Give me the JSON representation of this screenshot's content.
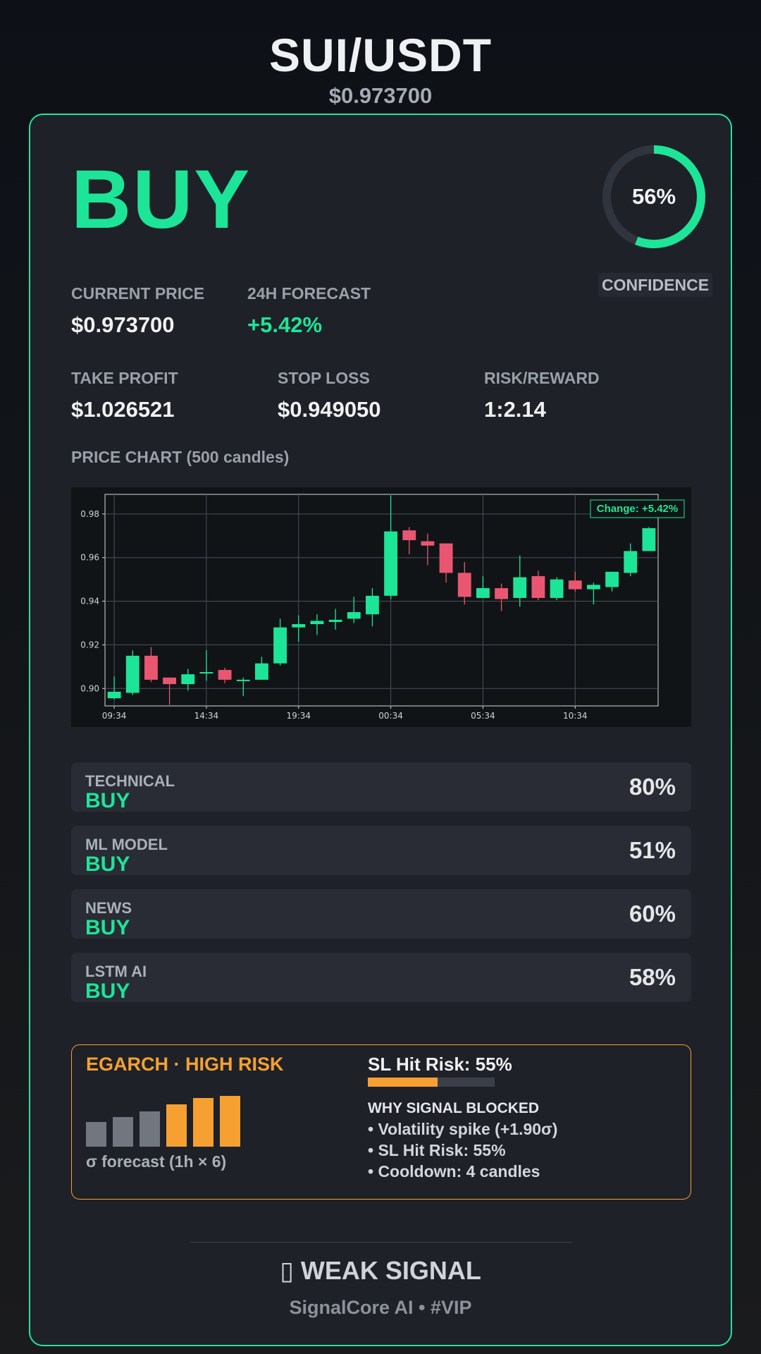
{
  "header": {
    "pair": "SUI/USDT",
    "price": "$0.973700"
  },
  "signal": {
    "action": "BUY",
    "confidence_label": "CONFIDENCE",
    "confidence_text": "56%",
    "confidence_value": 0.56
  },
  "metrics": {
    "current_price_label": "CURRENT PRICE",
    "current_price": "$0.973700",
    "forecast_label": "24H FORECAST",
    "forecast": "+5.42%",
    "take_profit_label": "TAKE PROFIT",
    "take_profit": "$1.026521",
    "stop_loss_label": "STOP LOSS",
    "stop_loss": "$0.949050",
    "rr_label": "RISK/REWARD",
    "rr": "1:2.14"
  },
  "chart_title": "PRICE CHART (500 candles)",
  "chart_data": {
    "type": "candlestick",
    "x_tick_labels": [
      "09:34",
      "14:34",
      "19:34",
      "00:34",
      "05:34",
      "10:34"
    ],
    "y_tick_labels": [
      "0.90",
      "0.92",
      "0.94",
      "0.96",
      "0.98"
    ],
    "ylim": [
      0.892,
      0.989
    ],
    "annotation": "Change: +5.42%",
    "grid": true,
    "colors": {
      "up": "#1de598",
      "down": "#ea5671",
      "grid": "#4a4f5a"
    },
    "candles": [
      {
        "o": 0.8955,
        "h": 0.9055,
        "l": 0.895,
        "c": 0.8985
      },
      {
        "o": 0.898,
        "h": 0.9175,
        "l": 0.897,
        "c": 0.915
      },
      {
        "o": 0.915,
        "h": 0.919,
        "l": 0.903,
        "c": 0.904
      },
      {
        "o": 0.905,
        "h": 0.905,
        "l": 0.8925,
        "c": 0.902
      },
      {
        "o": 0.902,
        "h": 0.909,
        "l": 0.899,
        "c": 0.9065
      },
      {
        "o": 0.907,
        "h": 0.9175,
        "l": 0.9035,
        "c": 0.9075
      },
      {
        "o": 0.9085,
        "h": 0.9095,
        "l": 0.9025,
        "c": 0.904
      },
      {
        "o": 0.9035,
        "h": 0.905,
        "l": 0.8965,
        "c": 0.904
      },
      {
        "o": 0.904,
        "h": 0.9145,
        "l": 0.904,
        "c": 0.9115
      },
      {
        "o": 0.9115,
        "h": 0.932,
        "l": 0.9105,
        "c": 0.928
      },
      {
        "o": 0.928,
        "h": 0.9335,
        "l": 0.9215,
        "c": 0.9295
      },
      {
        "o": 0.9295,
        "h": 0.934,
        "l": 0.9245,
        "c": 0.931
      },
      {
        "o": 0.9305,
        "h": 0.9365,
        "l": 0.927,
        "c": 0.9315
      },
      {
        "o": 0.932,
        "h": 0.942,
        "l": 0.93,
        "c": 0.935
      },
      {
        "o": 0.934,
        "h": 0.946,
        "l": 0.9285,
        "c": 0.9425
      },
      {
        "o": 0.9425,
        "h": 0.9885,
        "l": 0.941,
        "c": 0.972
      },
      {
        "o": 0.9725,
        "h": 0.974,
        "l": 0.9615,
        "c": 0.968
      },
      {
        "o": 0.9675,
        "h": 0.971,
        "l": 0.9565,
        "c": 0.9655
      },
      {
        "o": 0.9665,
        "h": 0.9665,
        "l": 0.9485,
        "c": 0.953
      },
      {
        "o": 0.953,
        "h": 0.958,
        "l": 0.9385,
        "c": 0.942
      },
      {
        "o": 0.9415,
        "h": 0.9515,
        "l": 0.9415,
        "c": 0.946
      },
      {
        "o": 0.946,
        "h": 0.948,
        "l": 0.9355,
        "c": 0.941
      },
      {
        "o": 0.9415,
        "h": 0.961,
        "l": 0.9375,
        "c": 0.951
      },
      {
        "o": 0.9515,
        "h": 0.954,
        "l": 0.9405,
        "c": 0.9415
      },
      {
        "o": 0.9415,
        "h": 0.951,
        "l": 0.9405,
        "c": 0.95
      },
      {
        "o": 0.9495,
        "h": 0.9535,
        "l": 0.9445,
        "c": 0.9455
      },
      {
        "o": 0.9455,
        "h": 0.9485,
        "l": 0.9385,
        "c": 0.9475
      },
      {
        "o": 0.9465,
        "h": 0.9535,
        "l": 0.9445,
        "c": 0.9535
      },
      {
        "o": 0.953,
        "h": 0.9665,
        "l": 0.9515,
        "c": 0.963
      },
      {
        "o": 0.963,
        "h": 0.974,
        "l": 0.963,
        "c": 0.9735
      }
    ]
  },
  "sources": [
    {
      "name": "TECHNICAL",
      "signal": "BUY",
      "pct": "80%"
    },
    {
      "name": "ML MODEL",
      "signal": "BUY",
      "pct": "51%"
    },
    {
      "name": "NEWS",
      "signal": "BUY",
      "pct": "60%"
    },
    {
      "name": "LSTM AI",
      "signal": "BUY",
      "pct": "58%"
    }
  ],
  "risk": {
    "title": "EGARCH · HIGH RISK",
    "sigma_label": "σ forecast (1h × 6)",
    "sigma_bars": [
      0.48,
      0.58,
      0.7,
      0.84,
      0.96,
      1.0
    ],
    "sigma_colors": [
      "#71767f",
      "#71767f",
      "#71767f",
      "#f5a031",
      "#f5a031",
      "#f5a031"
    ],
    "sl_risk_text": "SL Hit Risk: 55%",
    "sl_risk_value": 0.55,
    "why_title": "WHY SIGNAL BLOCKED",
    "reasons": [
      "• Volatility spike (+1.90σ)",
      "• SL Hit Risk: 55%",
      "• Cooldown: 4 candles"
    ]
  },
  "footer": {
    "status": "▯ WEAK SIGNAL",
    "brand": "SignalCore AI • #VIP"
  },
  "theme": {
    "accent": "#1de598",
    "warn": "#f5a031",
    "down": "#ea5671"
  }
}
